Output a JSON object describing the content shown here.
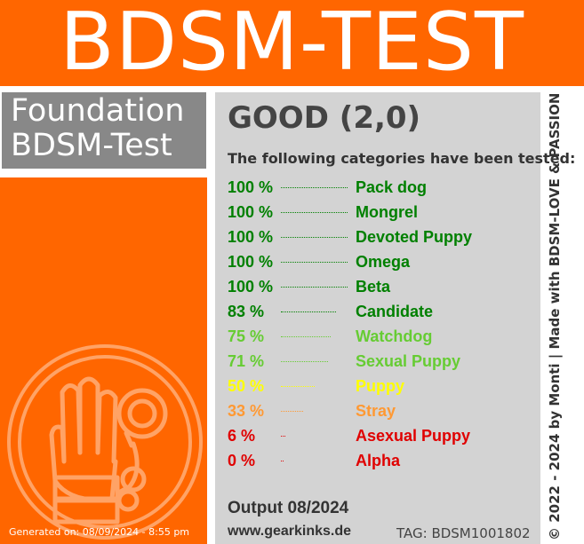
{
  "banner": {
    "title": "BDSM-TEST"
  },
  "foundation": {
    "line1": "Foundation",
    "line2": "BDSM-Test"
  },
  "result": {
    "grade": "GOOD (2,0)",
    "intro": "The following categories have been tested:",
    "categories": [
      {
        "percent": "100 %",
        "value": 100,
        "name": "Pack dog",
        "color": "#008000"
      },
      {
        "percent": "100 %",
        "value": 100,
        "name": "Mongrel",
        "color": "#008000"
      },
      {
        "percent": "100 %",
        "value": 100,
        "name": "Devoted Puppy",
        "color": "#008000"
      },
      {
        "percent": "100 %",
        "value": 100,
        "name": "Omega",
        "color": "#008000"
      },
      {
        "percent": "100 %",
        "value": 100,
        "name": "Beta",
        "color": "#008000"
      },
      {
        "percent": "83 %",
        "value": 83,
        "name": "Candidate",
        "color": "#008000"
      },
      {
        "percent": "75 %",
        "value": 75,
        "name": "Watchdog",
        "color": "#66cc33"
      },
      {
        "percent": "71 %",
        "value": 71,
        "name": "Sexual Puppy",
        "color": "#66cc33"
      },
      {
        "percent": "50 %",
        "value": 50,
        "name": "Puppy",
        "color": "#ffff00"
      },
      {
        "percent": "33 %",
        "value": 33,
        "name": "Stray",
        "color": "#ff9933"
      },
      {
        "percent": "6 %",
        "value": 6,
        "name": "Asexual Puppy",
        "color": "#e00000"
      },
      {
        "percent": "0 %",
        "value": 0,
        "name": "Alpha",
        "color": "#e00000"
      }
    ],
    "output": "Output 08/2024",
    "website": "www.gearkinks.de",
    "tag": "TAG: BDSM1001802"
  },
  "footer": {
    "generated": "Generated on: 08/09/2024 - 8:55 pm",
    "credit": "© 2022 - 2024 by Monti | Made with BDSM-LOVE & PASSION"
  },
  "colors": {
    "accent": "#ff6600",
    "panel_gray": "#d3d3d3",
    "foundation_gray": "#888888"
  },
  "icons": {
    "logo": "bound-hand-cuff-icon"
  }
}
